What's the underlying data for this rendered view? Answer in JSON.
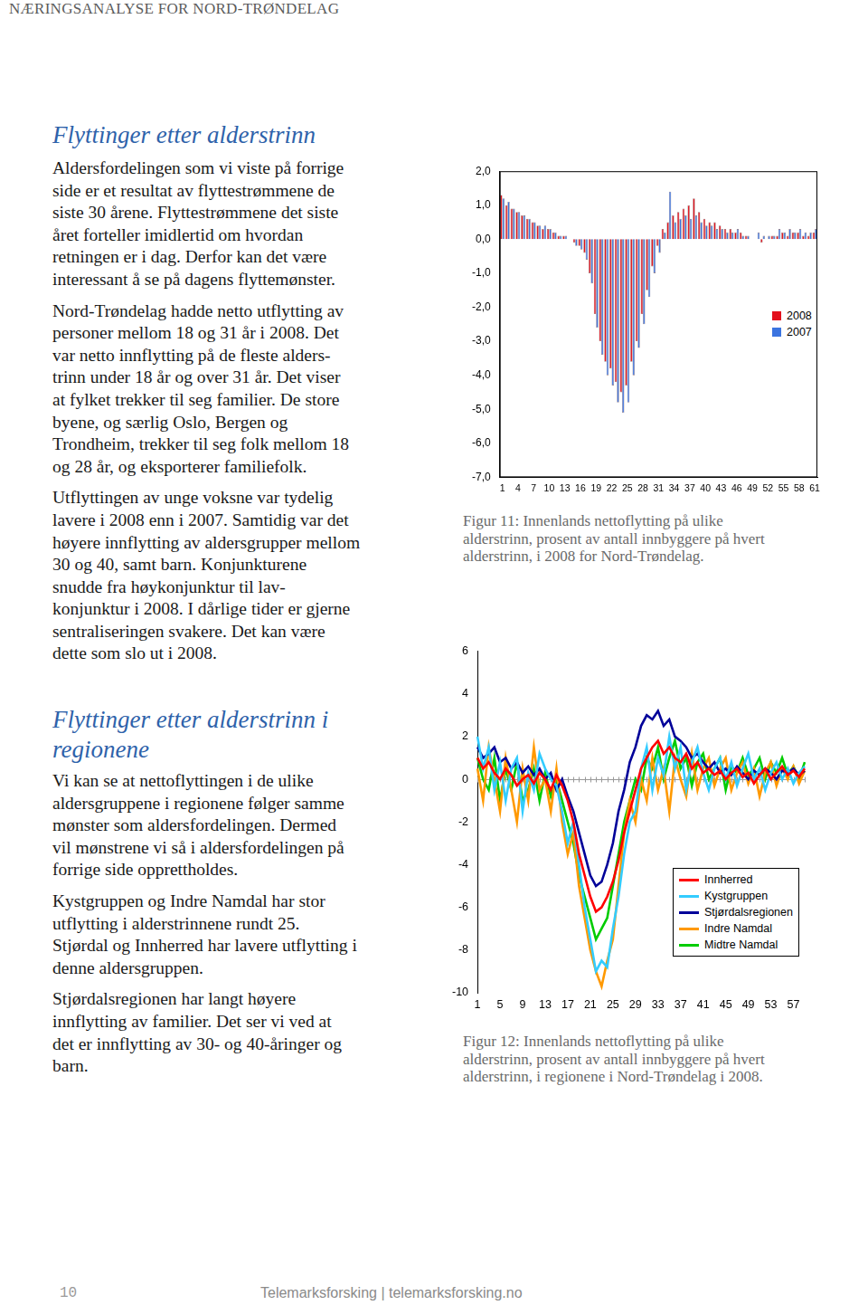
{
  "page": {
    "header": "NÆRINGSANALYSE FOR NORD-TRØNDELAG",
    "sections": [
      {
        "title": [
          "Flyttinger etter alderstrinn"
        ],
        "paragraphs": [
          [
            "Aldersfordelingen som vi viste på forrige",
            "side er et resultat av flyttestrømmene de",
            "siste 30 årene. Flyttestrømmene det siste",
            "året forteller imidlertid om hvordan",
            "retningen er i dag. Derfor kan det være",
            "interessant å se på dagens flyttemønster."
          ],
          [
            "Nord-Trøndelag hadde netto utflytting av",
            "personer mellom 18 og 31 år i 2008. Det",
            "var netto innflytting på de fleste alders-",
            "trinn under 18 år og over 31 år. Det viser",
            "at fylket trekker til seg familier. De store",
            "byene, og særlig Oslo, Bergen og",
            "Trondheim, trekker til seg folk mellom 18",
            "og 28 år, og eksporterer familiefolk."
          ],
          [
            "Utflyttingen av unge voksne var tydelig",
            "lavere i 2008 enn i 2007. Samtidig var det",
            "høyere innflytting av aldersgrupper mellom",
            "30 og 40, samt barn. Konjunkturene",
            "snudde fra høykonjunktur til lav-",
            "konjunktur i 2008. I dårlige tider er gjerne",
            "sentraliseringen svakere. Det kan være",
            "dette som slo ut i 2008."
          ]
        ]
      },
      {
        "title": [
          "Flyttinger etter alderstrinn i",
          "regionene"
        ],
        "paragraphs": [
          [
            "Vi kan se at nettoflyttingen i de ulike",
            "aldersgruppene i regionene følger samme",
            "mønster som aldersfordelingen. Dermed",
            "vil mønstrene vi så i aldersfordelingen på",
            "forrige side opprettholdes."
          ],
          [
            "Kystgruppen og Indre Namdal har stor",
            "utflytting i alderstrinnene rundt 25.",
            "Stjørdal og Innherred har lavere utflytting i",
            "denne aldersgruppen."
          ],
          [
            "Stjørdalsregionen har langt høyere",
            "innflytting av familier. Det ser vi ved at",
            "det er innflytting av 30- og 40-åringer og",
            "barn."
          ]
        ]
      }
    ],
    "captions": [
      [
        "Figur 11: Innenlands nettoflytting på ulike",
        "alderstrinn, prosent av antall innbyggere på hvert",
        "alderstrinn, i 2008 for Nord-Trøndelag."
      ],
      [
        "Figur 12: Innenlands nettoflytting på ulike",
        "alderstrinn, prosent av antall innbyggere på hvert",
        "alderstrinn,  i regionene i Nord-Trøndelag i 2008."
      ]
    ],
    "page_number": "10",
    "footer": "Telemarksforsking | telemarksforsking.no"
  },
  "chart_data": [
    {
      "type": "bar",
      "categories": [
        "1",
        null,
        null,
        "4",
        null,
        null,
        "7",
        null,
        null,
        "10",
        null,
        null,
        "13",
        null,
        null,
        "16",
        null,
        null,
        "19",
        null,
        null,
        "22",
        null,
        null,
        "25",
        null,
        null,
        "28",
        null,
        null,
        "31",
        null,
        null,
        "34",
        null,
        null,
        "37",
        null,
        null,
        "40",
        null,
        null,
        "43",
        null,
        null,
        "46",
        null,
        null,
        "49",
        null,
        null,
        "52",
        null,
        null,
        "55",
        null,
        null,
        "58",
        null,
        null,
        "61"
      ],
      "series": [
        {
          "name": "2008",
          "color": "#e3101c",
          "values": [
            1.3,
            1.0,
            0.9,
            0.8,
            0.7,
            0.6,
            0.5,
            0.4,
            0.3,
            0.3,
            0.2,
            0.1,
            0.1,
            0,
            -0.1,
            -0.2,
            -0.4,
            -1.0,
            -2.2,
            -3.0,
            -3.6,
            -3.8,
            -4.2,
            -4.5,
            -4.3,
            -3.6,
            -3.0,
            -2.2,
            -1.5,
            -0.8,
            -0.2,
            0.3,
            0.5,
            0.7,
            0.8,
            0.9,
            1.0,
            1.2,
            0.8,
            0.6,
            0.5,
            0.5,
            0.4,
            0.3,
            0.3,
            0.2,
            0.2,
            0.1,
            0,
            0,
            -0.1,
            0,
            0.1,
            0.1,
            0.2,
            0.1,
            0.2,
            0.2,
            0.1,
            0.1,
            0.2
          ]
        },
        {
          "name": "2007",
          "color": "#3b74e0",
          "values": [
            1.2,
            1.1,
            0.9,
            0.8,
            0.7,
            0.6,
            0.5,
            0.4,
            0.4,
            0.3,
            0.2,
            0.1,
            0.1,
            0,
            -0.2,
            -0.3,
            -0.6,
            -1.3,
            -2.6,
            -3.4,
            -4.0,
            -4.3,
            -4.8,
            -5.1,
            -4.8,
            -4.0,
            -3.2,
            -2.5,
            -1.7,
            -1.0,
            -0.4,
            0.2,
            1.4,
            0.5,
            0.6,
            0.7,
            0.6,
            0.7,
            0.5,
            0.4,
            0.4,
            0.3,
            0.3,
            0.2,
            0.2,
            0.3,
            0.1,
            0.1,
            0,
            0.2,
            0.1,
            0.1,
            0.1,
            0.3,
            0.2,
            0.3,
            0.2,
            0.3,
            0.2,
            0.2,
            0.3
          ]
        }
      ],
      "ylim": [
        -7,
        2
      ],
      "yticks": [
        {
          "value": -7,
          "label": "-7,0"
        },
        {
          "value": -6,
          "label": "-6,0"
        },
        {
          "value": -5,
          "label": "-5,0"
        },
        {
          "value": -4,
          "label": "-4,0"
        },
        {
          "value": -3,
          "label": "-3,0"
        },
        {
          "value": -2,
          "label": "-2,0"
        },
        {
          "value": -1,
          "label": "-1,0"
        },
        {
          "value": 0,
          "label": "0,0"
        },
        {
          "value": 1,
          "label": "1,0"
        },
        {
          "value": 2,
          "label": "2,0"
        }
      ],
      "grid": false,
      "legend": "right"
    },
    {
      "type": "line",
      "categories": [
        "1",
        null,
        null,
        null,
        "5",
        null,
        null,
        null,
        "9",
        null,
        null,
        null,
        "13",
        null,
        null,
        null,
        "17",
        null,
        null,
        null,
        "21",
        null,
        null,
        null,
        "25",
        null,
        null,
        null,
        "29",
        null,
        null,
        null,
        "33",
        null,
        null,
        null,
        "37",
        null,
        null,
        null,
        "41",
        null,
        null,
        null,
        "45",
        null,
        null,
        null,
        "49",
        null,
        null,
        null,
        "53",
        null,
        null,
        null,
        "57",
        null,
        null
      ],
      "series": [
        {
          "name": "Innherred",
          "color": "#ff0000",
          "values": [
            1.0,
            0.5,
            0.8,
            0.3,
            0,
            0.5,
            0.2,
            -0.3,
            0,
            0.2,
            -0.2,
            0.3,
            0,
            -0.5,
            0.2,
            -0.3,
            -1.0,
            -2.0,
            -3.5,
            -4.5,
            -5.5,
            -6.2,
            -6.0,
            -5.5,
            -4.8,
            -3.8,
            -2.5,
            -1.5,
            -0.5,
            0.5,
            1.0,
            1.5,
            1.8,
            1.2,
            1.5,
            1.0,
            0.8,
            1.2,
            0.5,
            0.8,
            0.3,
            0.5,
            0.2,
            0.4,
            0,
            0.3,
            0.5,
            0.1,
            0.3,
            -0.2,
            0.2,
            0.5,
            0,
            0.3,
            0.6,
            0.2,
            0.4,
            0.1,
            0.5
          ]
        },
        {
          "name": "Kystgruppen",
          "color": "#33ccff",
          "values": [
            2.0,
            0.5,
            1.5,
            -0.5,
            0.8,
            -1.0,
            0.5,
            1.0,
            -1.5,
            0.3,
            -0.5,
            1.2,
            0.5,
            0,
            -0.3,
            -1.5,
            -3.0,
            -2.0,
            -4.0,
            -6.0,
            -7.5,
            -9.0,
            -8.5,
            -8.8,
            -7.0,
            -5.5,
            -3.5,
            -2.0,
            -1.5,
            0.5,
            1.5,
            -0.5,
            1.0,
            0.2,
            2.0,
            0.5,
            1.5,
            -0.5,
            0.8,
            1.5,
            0.3,
            -0.5,
            0.5,
            1.0,
            0,
            0.8,
            -0.3,
            0.5,
            1.2,
            0,
            0.5,
            -0.5,
            0.3,
            0.8,
            0,
            0.5,
            -0.2,
            0.3,
            0.6
          ]
        },
        {
          "name": "Stjørdalsregionen",
          "color": "#000099",
          "values": [
            1.5,
            1.0,
            1.2,
            1.5,
            0.8,
            1.0,
            0.5,
            0.8,
            0.3,
            0.6,
            0.2,
            0.5,
            0,
            0.3,
            -0.5,
            0,
            -0.8,
            -1.5,
            -2.5,
            -3.5,
            -4.5,
            -5.0,
            -4.8,
            -4.0,
            -3.0,
            -1.5,
            -0.5,
            0.8,
            1.5,
            2.5,
            3.0,
            2.8,
            3.2,
            2.5,
            2.8,
            2.0,
            1.8,
            1.5,
            1.0,
            1.2,
            0.8,
            0.5,
            0.8,
            0.3,
            0.5,
            0.2,
            0.6,
            0.3,
            0,
            0.4,
            0.2,
            0.5,
            0.3,
            0,
            0.4,
            0.3,
            0.5,
            0.2,
            0.4
          ]
        },
        {
          "name": "Indre Namdal",
          "color": "#ff9900",
          "values": [
            0.5,
            -1.0,
            1.5,
            0,
            -1.5,
            1.0,
            -0.5,
            -2.0,
            0.5,
            -1.0,
            1.5,
            -0.5,
            0,
            -1.5,
            0.5,
            -2.0,
            -3.5,
            -2.5,
            -5.0,
            -6.5,
            -8.0,
            -9.0,
            -9.7,
            -8.5,
            -7.5,
            -5.0,
            -2.5,
            -1.0,
            -2.0,
            0,
            -1.0,
            1.0,
            -0.5,
            0.5,
            -1.5,
            1.0,
            0,
            -0.8,
            1.2,
            -0.5,
            0.5,
            1.0,
            -0.3,
            0.5,
            1.0,
            -0.5,
            0.3,
            0.8,
            -0.2,
            0.5,
            -0.8,
            0.3,
            0.8,
            -0.3,
            0.5,
            0,
            0.6,
            -0.2,
            0.4
          ]
        },
        {
          "name": "Midtre Namdal",
          "color": "#00cc00",
          "values": [
            1.0,
            0,
            -0.5,
            1.0,
            -1.0,
            0.5,
            -0.5,
            0.8,
            -1.0,
            -0.5,
            0.5,
            -1.0,
            0.3,
            -0.8,
            0,
            -1.0,
            -2.0,
            -3.0,
            -4.5,
            -5.5,
            -6.5,
            -7.5,
            -7.0,
            -6.5,
            -5.0,
            -3.5,
            -2.0,
            -1.0,
            0,
            -0.5,
            1.0,
            0.5,
            1.5,
            0,
            1.0,
            1.8,
            0.5,
            1.0,
            -0.3,
            0.8,
            1.2,
            0,
            0.5,
            1.0,
            -0.5,
            0.6,
            0.3,
            1.0,
            0.2,
            0.5,
            1.0,
            0,
            0.8,
            0.3,
            1.0,
            0.2,
            0.6,
            0,
            0.8
          ]
        }
      ],
      "ylim": [
        -10,
        6
      ],
      "yticks": [
        -10,
        -8,
        -6,
        -4,
        -2,
        0,
        2,
        4,
        6
      ],
      "grid": false,
      "legend": "lower right"
    }
  ]
}
